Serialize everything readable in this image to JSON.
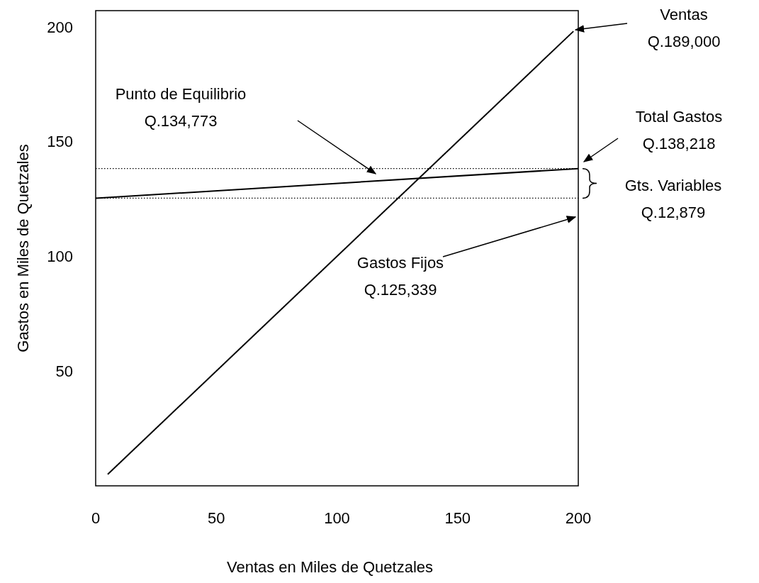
{
  "chart_data": {
    "type": "line",
    "xlabel": "Ventas en Miles de Quetzales",
    "ylabel": "Gastos en Miles de Quetzales",
    "xlim": [
      0,
      200
    ],
    "ylim": [
      0,
      207
    ],
    "xticks": [
      0,
      50,
      100,
      150,
      200
    ],
    "yticks": [
      50,
      100,
      150,
      200
    ],
    "grid": false,
    "marker": "none",
    "line_style": "solid",
    "series": [
      {
        "color": "#000000",
        "x": [
          5,
          198
        ],
        "values": [
          5,
          198
        ]
      },
      {
        "color": "#000000",
        "x": [
          0,
          200
        ],
        "values": [
          125.3,
          138.2
        ]
      }
    ],
    "ref_lines": [
      {
        "axis": "y",
        "value": 138.2,
        "line_style": "dotted",
        "color": "#000000"
      },
      {
        "axis": "y",
        "value": 125.3,
        "line_style": "dotted",
        "color": "#000000"
      }
    ],
    "annotations": [
      "Ventas\nQ.189,000",
      "Punto de Equilibrio\nQ.134,773",
      "Total Gastos\nQ.138,218",
      "Gts. Variables\nQ.12,879",
      "Gastos Fijos\nQ.125,339"
    ]
  }
}
